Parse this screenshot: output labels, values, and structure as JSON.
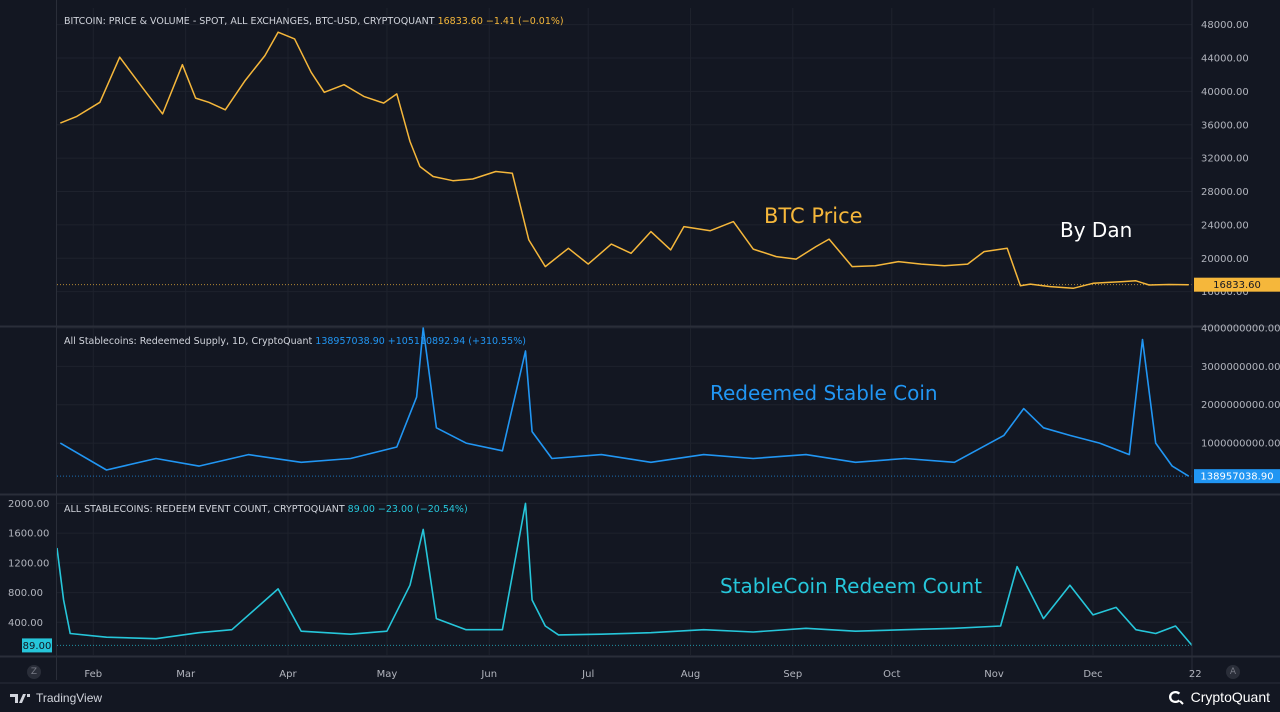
{
  "colors": {
    "background": "#131722",
    "grid": "#1e222d",
    "price": "#f5b73b",
    "redeemed": "#2196f3",
    "count": "#26c6da",
    "axis_text": "#b2b5be"
  },
  "annotations": {
    "btc_price": "BTC Price",
    "author": "By Dan",
    "redeemed_label": "Redeemed Stable Coin",
    "count_label": "StableCoin Redeem Count"
  },
  "footer": {
    "tradingview": "TradingView",
    "cryptoquant": "CryptoQuant"
  },
  "corner": {
    "left_btn": "Z",
    "right_btn": "A"
  },
  "chart_data": [
    {
      "type": "line",
      "title": "BITCOIN: PRICE & VOLUME - SPOT, ALL EXCHANGES, BTC-USD, CRYPTOQUANT",
      "last_value": "16833.60",
      "change": "−1.41 (−0.01%)",
      "last_label": "16833.60",
      "x_range": [
        "2022-01-21",
        "2022-12-31"
      ],
      "ylim": [
        12000,
        50000
      ],
      "yticks": [
        {
          "v": 48000,
          "t": "48000.00"
        },
        {
          "v": 44000,
          "t": "44000.00"
        },
        {
          "v": 40000,
          "t": "40000.00"
        },
        {
          "v": 36000,
          "t": "36000.00"
        },
        {
          "v": 32000,
          "t": "32000.00"
        },
        {
          "v": 28000,
          "t": "28000.00"
        },
        {
          "v": 24000,
          "t": "24000.00"
        },
        {
          "v": 20000,
          "t": "20000.00"
        },
        {
          "v": 16000,
          "t": "16000.00"
        }
      ],
      "series": [
        {
          "x": [
            "2022-01-22",
            "2022-01-27",
            "2022-02-03",
            "2022-02-09",
            "2022-02-16",
            "2022-02-22",
            "2022-02-28",
            "2022-03-04",
            "2022-03-08",
            "2022-03-13",
            "2022-03-19",
            "2022-03-25",
            "2022-03-29",
            "2022-04-03",
            "2022-04-08",
            "2022-04-12",
            "2022-04-18",
            "2022-04-24",
            "2022-04-30",
            "2022-05-04",
            "2022-05-08",
            "2022-05-11",
            "2022-05-15",
            "2022-05-21",
            "2022-05-27",
            "2022-06-03",
            "2022-06-08",
            "2022-06-13",
            "2022-06-18",
            "2022-06-25",
            "2022-07-01",
            "2022-07-08",
            "2022-07-14",
            "2022-07-20",
            "2022-07-26",
            "2022-07-30",
            "2022-08-07",
            "2022-08-14",
            "2022-08-20",
            "2022-08-27",
            "2022-09-02",
            "2022-09-08",
            "2022-09-12",
            "2022-09-19",
            "2022-09-26",
            "2022-10-03",
            "2022-10-10",
            "2022-10-17",
            "2022-10-24",
            "2022-10-29",
            "2022-11-05",
            "2022-11-09",
            "2022-11-12",
            "2022-11-18",
            "2022-11-25",
            "2022-12-01",
            "2022-12-05",
            "2022-12-10",
            "2022-12-14",
            "2022-12-18",
            "2022-12-24",
            "2022-12-30"
          ],
          "values": [
            36200,
            37000,
            38700,
            44100,
            40400,
            37300,
            43200,
            39200,
            38700,
            37800,
            41300,
            44300,
            47100,
            46300,
            42300,
            39900,
            40800,
            39400,
            38600,
            39700,
            34000,
            31000,
            29800,
            29300,
            29500,
            30400,
            30200,
            22200,
            19000,
            21200,
            19300,
            21700,
            20600,
            23200,
            21000,
            23800,
            23300,
            24400,
            21100,
            20200,
            19900,
            21400,
            22300,
            19000,
            19100,
            19600,
            19300,
            19100,
            19300,
            20800,
            21200,
            16700,
            16900,
            16600,
            16400,
            17000,
            17100,
            17200,
            17300,
            16800,
            16850,
            16833
          ]
        }
      ]
    },
    {
      "type": "line",
      "title": "All Stablecoins: Redeemed Supply, 1D, CryptoQuant",
      "last_value": "138957038.90",
      "change": "+105110892.94 (+310.55%)",
      "last_label": "138957038.90",
      "ylim": [
        -300000000,
        4000000000
      ],
      "yticks": [
        {
          "v": 4000000000,
          "t": "4000000000.00"
        },
        {
          "v": 3000000000,
          "t": "3000000000.00"
        },
        {
          "v": 2000000000,
          "t": "2000000000.00"
        },
        {
          "v": 1000000000,
          "t": "1000000000.00"
        }
      ],
      "series": [
        {
          "x": [
            "2022-01-22",
            "2022-02-05",
            "2022-02-20",
            "2022-03-05",
            "2022-03-20",
            "2022-04-05",
            "2022-04-20",
            "2022-05-04",
            "2022-05-10",
            "2022-05-12",
            "2022-05-16",
            "2022-05-25",
            "2022-06-05",
            "2022-06-12",
            "2022-06-14",
            "2022-06-20",
            "2022-07-05",
            "2022-07-20",
            "2022-08-05",
            "2022-08-20",
            "2022-09-05",
            "2022-09-20",
            "2022-10-05",
            "2022-10-20",
            "2022-11-04",
            "2022-11-10",
            "2022-11-16",
            "2022-11-24",
            "2022-12-03",
            "2022-12-12",
            "2022-12-16",
            "2022-12-20",
            "2022-12-25",
            "2022-12-30"
          ],
          "values": [
            1000000000,
            300000000,
            600000000,
            400000000,
            700000000,
            500000000,
            600000000,
            900000000,
            2200000000,
            4000000000,
            1400000000,
            1000000000,
            800000000,
            3400000000,
            1300000000,
            600000000,
            700000000,
            500000000,
            700000000,
            600000000,
            700000000,
            500000000,
            600000000,
            500000000,
            1200000000,
            1900000000,
            1400000000,
            1200000000,
            1000000000,
            700000000,
            3700000000,
            1000000000,
            400000000,
            138957038.9
          ]
        }
      ]
    },
    {
      "type": "line",
      "title": "ALL STABLECOINS: REDEEM EVENT COUNT, CRYPTOQUANT",
      "last_value": "89.00",
      "change": "−23.00 (−20.54%)",
      "last_label": "89.00",
      "ylim": [
        -40,
        2100
      ],
      "yticks": [
        {
          "v": 2000,
          "t": "2000.00"
        },
        {
          "v": 1600,
          "t": "1600.00"
        },
        {
          "v": 1200,
          "t": "1200.00"
        },
        {
          "v": 800,
          "t": "800.00"
        },
        {
          "v": 400,
          "t": "400.00"
        }
      ],
      "series": [
        {
          "x": [
            "2022-01-21",
            "2022-01-23",
            "2022-01-25",
            "2022-02-05",
            "2022-02-20",
            "2022-03-05",
            "2022-03-15",
            "2022-03-29",
            "2022-04-05",
            "2022-04-20",
            "2022-05-01",
            "2022-05-08",
            "2022-05-12",
            "2022-05-16",
            "2022-05-25",
            "2022-06-05",
            "2022-06-12",
            "2022-06-14",
            "2022-06-18",
            "2022-06-22",
            "2022-07-05",
            "2022-07-20",
            "2022-08-05",
            "2022-08-20",
            "2022-09-05",
            "2022-09-20",
            "2022-10-05",
            "2022-10-20",
            "2022-11-03",
            "2022-11-08",
            "2022-11-12",
            "2022-11-16",
            "2022-11-24",
            "2022-12-01",
            "2022-12-08",
            "2022-12-14",
            "2022-12-20",
            "2022-12-26",
            "2022-12-31"
          ],
          "values": [
            1400,
            700,
            250,
            200,
            180,
            260,
            300,
            850,
            280,
            240,
            280,
            900,
            1650,
            450,
            300,
            300,
            2000,
            700,
            350,
            230,
            240,
            260,
            300,
            270,
            320,
            280,
            300,
            320,
            350,
            1150,
            800,
            450,
            900,
            500,
            600,
            300,
            250,
            350,
            89
          ]
        }
      ]
    }
  ],
  "x_axis": {
    "ticks": [
      {
        "d": "2022-02-01",
        "t": "Feb"
      },
      {
        "d": "2022-03-01",
        "t": "Mar"
      },
      {
        "d": "2022-04-01",
        "t": "Apr"
      },
      {
        "d": "2022-05-01",
        "t": "May"
      },
      {
        "d": "2022-06-01",
        "t": "Jun"
      },
      {
        "d": "2022-07-01",
        "t": "Jul"
      },
      {
        "d": "2022-08-01",
        "t": "Aug"
      },
      {
        "d": "2022-09-01",
        "t": "Sep"
      },
      {
        "d": "2022-10-01",
        "t": "Oct"
      },
      {
        "d": "2022-11-01",
        "t": "Nov"
      },
      {
        "d": "2022-12-01",
        "t": "Dec"
      },
      {
        "d": "2023-01-01",
        "t": "22"
      }
    ]
  }
}
